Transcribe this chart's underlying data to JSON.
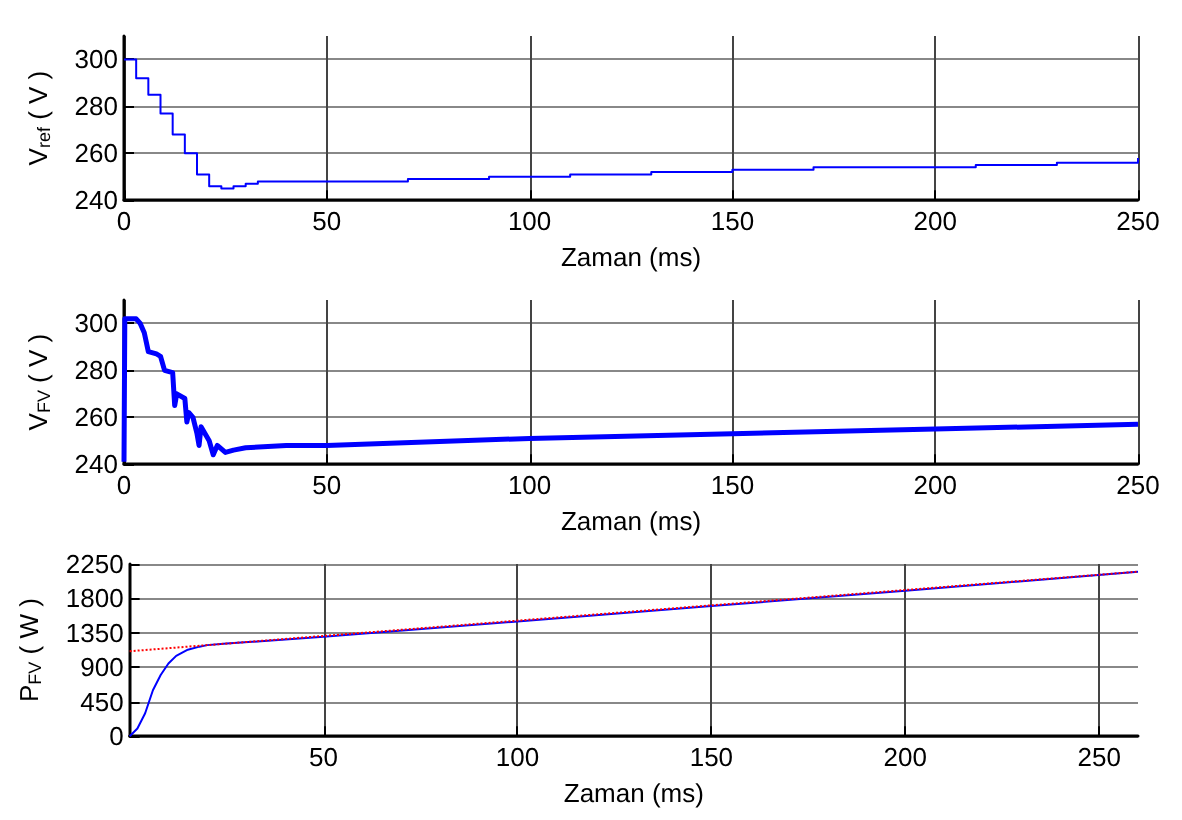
{
  "chart_data": [
    {
      "type": "step",
      "ylabel": "V$_{ref}$ ( V )",
      "xlabel": "Zaman (ms)",
      "xlim": [
        0,
        250
      ],
      "xticks": [
        0,
        50,
        100,
        150,
        200,
        250
      ],
      "ylim": [
        240,
        310
      ],
      "yticks": [
        240,
        260,
        280,
        300
      ],
      "grid": true,
      "series": [
        {
          "color": "#0000ff",
          "x": [
            0,
            3,
            6,
            9,
            12,
            15,
            18,
            21,
            24,
            27,
            30,
            33,
            50,
            70,
            90,
            110,
            130,
            150,
            170,
            190,
            210,
            230,
            250
          ],
          "values": [
            300,
            292,
            285,
            277,
            268,
            260,
            251,
            246,
            245,
            246,
            247,
            248,
            248,
            249,
            250,
            251,
            252,
            253,
            254,
            254,
            255,
            256,
            258
          ]
        }
      ]
    },
    {
      "type": "line",
      "ylabel": "V$_{FV}$ ( V )",
      "xlabel": "Zaman (ms)",
      "xlim": [
        0,
        250
      ],
      "xticks": [
        0,
        50,
        100,
        150,
        200,
        250
      ],
      "ylim": [
        240,
        310
      ],
      "yticks": [
        240,
        260,
        280,
        300
      ],
      "grid": true,
      "series": [
        {
          "color": "#0000ff",
          "x": [
            0,
            0.2,
            3,
            4,
            5,
            6,
            8,
            9,
            10,
            12,
            12.5,
            13,
            15,
            15.5,
            16,
            17,
            18,
            18.5,
            19,
            21,
            22,
            23,
            25,
            27,
            30,
            40,
            50,
            100,
            150,
            200,
            250
          ],
          "values": [
            241,
            302,
            302,
            300,
            296,
            288,
            287,
            286,
            280,
            279,
            265,
            270,
            268,
            258,
            262,
            260,
            253,
            248,
            256,
            250,
            244,
            248,
            245,
            246,
            247,
            248,
            248,
            251,
            253,
            255,
            257
          ]
        }
      ]
    },
    {
      "type": "line",
      "ylabel": "P$_{FV}$ ( W )",
      "xlabel": "Zaman (ms)",
      "xlim": [
        0,
        260
      ],
      "xticks": [
        50,
        100,
        150,
        200,
        250
      ],
      "ylim": [
        0,
        2250
      ],
      "yticks": [
        0,
        450,
        900,
        1350,
        1800,
        2250
      ],
      "grid": true,
      "series": [
        {
          "color": "#0000ff",
          "x": [
            0,
            2,
            4,
            5,
            6,
            8,
            10,
            12,
            15,
            18,
            20,
            25,
            50,
            100,
            150,
            200,
            260
          ],
          "values": [
            0,
            100,
            300,
            450,
            600,
            800,
            950,
            1050,
            1130,
            1170,
            1190,
            1210,
            1300,
            1500,
            1700,
            1900,
            2150
          ]
        },
        {
          "color": "#ff0000",
          "line_style": "dotted",
          "x": [
            0,
            260
          ],
          "values": [
            1110,
            2150
          ]
        }
      ]
    }
  ]
}
